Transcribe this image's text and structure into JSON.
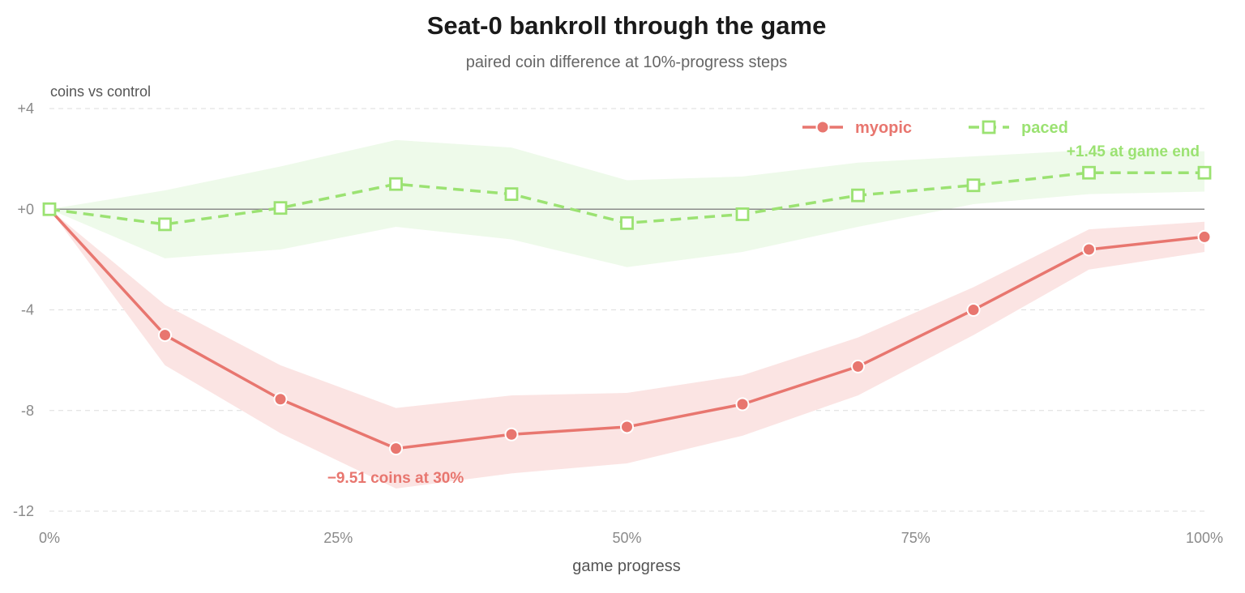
{
  "chart_data": {
    "type": "line",
    "title": "Seat-0 bankroll through the game",
    "subtitle": "paired coin difference at 10%-progress steps",
    "ylabel": "coins vs control",
    "xlabel": "game progress",
    "x": [
      0,
      10,
      20,
      30,
      40,
      50,
      60,
      70,
      80,
      90,
      100
    ],
    "xlim": [
      0,
      100
    ],
    "ylim": [
      -12,
      4
    ],
    "x_ticks": [
      0,
      25,
      50,
      75,
      100
    ],
    "x_tick_labels": [
      "0%",
      "25%",
      "50%",
      "75%",
      "100%"
    ],
    "y_ticks": [
      4,
      0,
      -4,
      -8,
      -12
    ],
    "y_tick_labels": [
      "+4",
      "+0",
      "-4",
      "-8",
      "-12"
    ],
    "grid": true,
    "zero_line": true,
    "legend_position": "top-right",
    "series": [
      {
        "name": "myopic",
        "color": "#e8766f",
        "band_color": "#fbe4e3",
        "marker": "circle",
        "dash": "solid",
        "values": [
          0,
          -5.0,
          -7.55,
          -9.51,
          -8.95,
          -8.65,
          -7.75,
          -6.25,
          -4.0,
          -1.6,
          -1.1
        ],
        "lower": [
          0,
          -6.2,
          -8.9,
          -11.1,
          -10.5,
          -10.1,
          -9.0,
          -7.4,
          -5.0,
          -2.4,
          -1.7
        ],
        "upper": [
          0,
          -3.8,
          -6.2,
          -7.9,
          -7.4,
          -7.3,
          -6.6,
          -5.1,
          -3.1,
          -0.8,
          -0.5
        ]
      },
      {
        "name": "paced",
        "color": "#9be272",
        "band_color": "#eefaea",
        "marker": "square-open",
        "dash": "dashed",
        "values": [
          0,
          -0.6,
          0.05,
          1.0,
          0.6,
          -0.55,
          -0.2,
          0.55,
          0.95,
          1.45,
          1.45
        ],
        "lower": [
          0,
          -1.95,
          -1.6,
          -0.7,
          -1.2,
          -2.3,
          -1.7,
          -0.7,
          0.2,
          0.6,
          0.7
        ],
        "upper": [
          0,
          0.75,
          1.7,
          2.75,
          2.45,
          1.15,
          1.3,
          1.85,
          2.1,
          2.35,
          2.3
        ]
      }
    ],
    "annotations": [
      {
        "series": "myopic",
        "text": "−9.51 coins at 30%"
      },
      {
        "series": "paced",
        "text": "+1.45 at game end"
      }
    ]
  }
}
